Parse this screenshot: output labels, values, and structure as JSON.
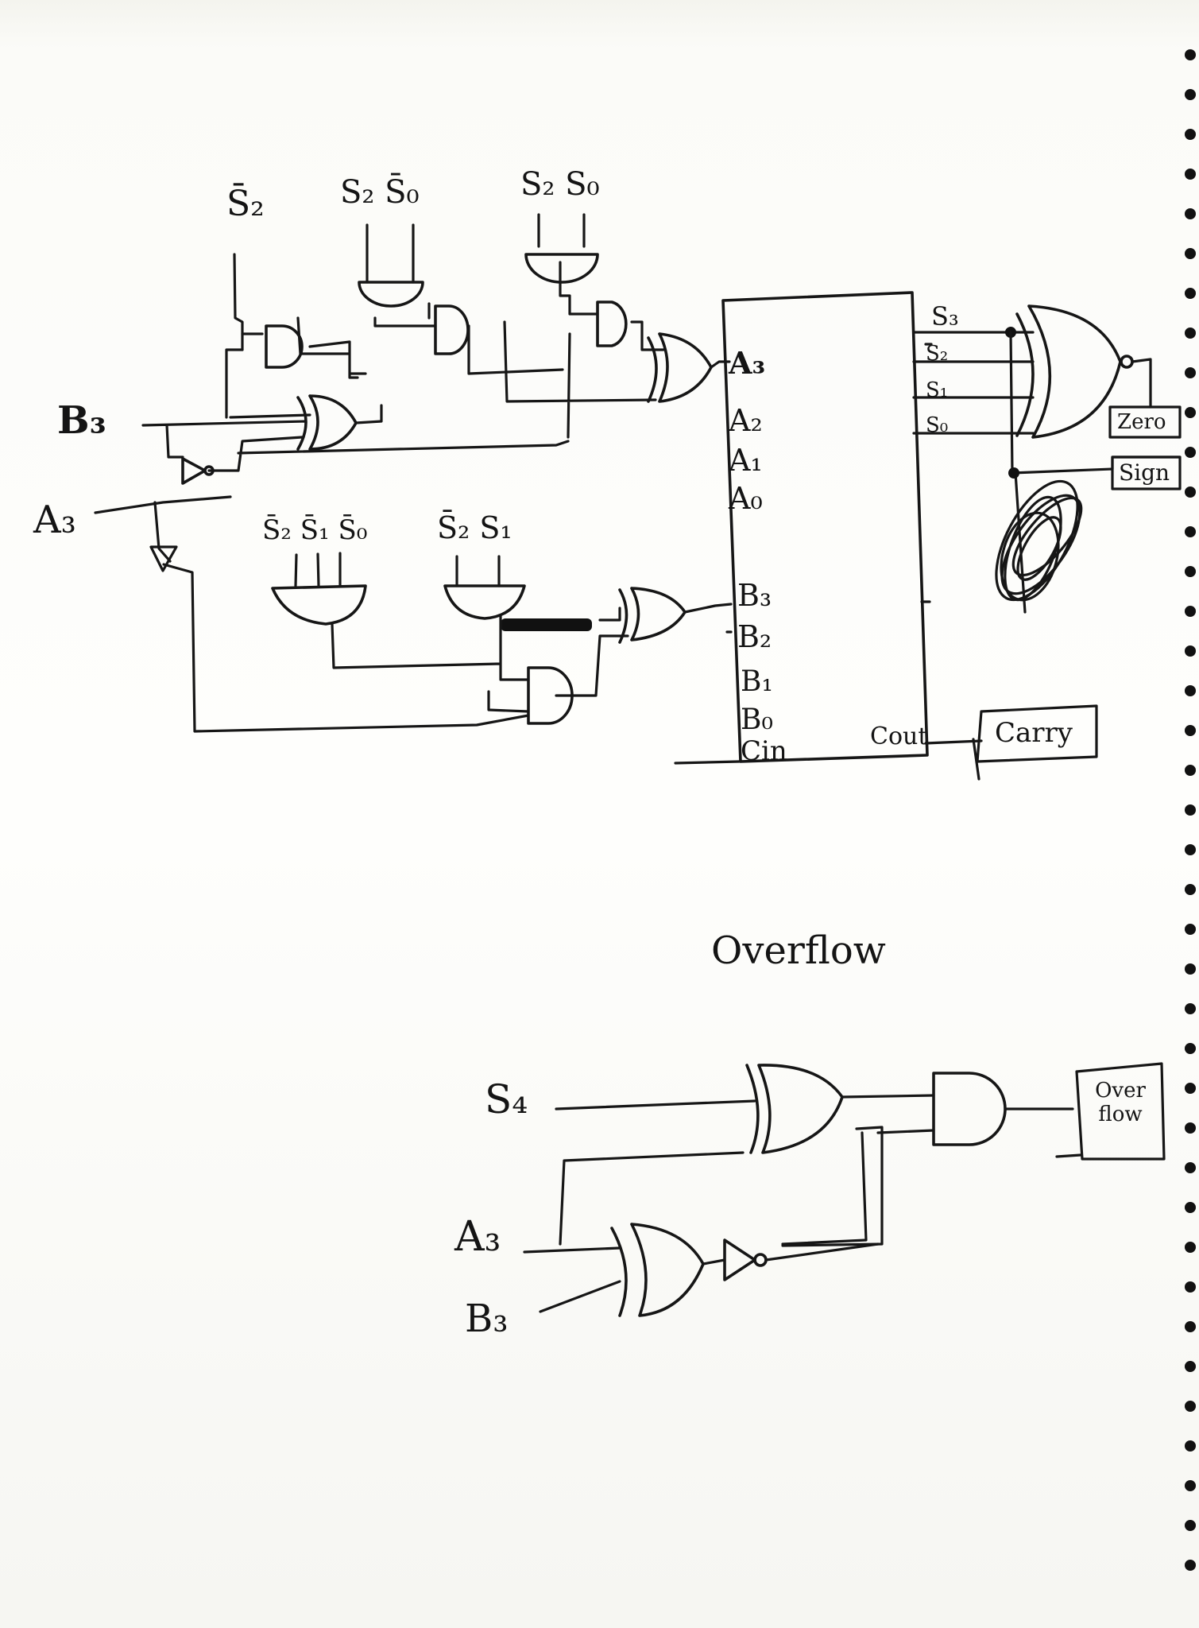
{
  "top_inputs": {
    "not_s2": "S̄₂",
    "s2_not_s0": "S₂ S̄₀",
    "s2_s0": "S₂ S₀",
    "not_s2_s1_s0": "S̄₂ S̄₁ S̄₀",
    "not_s2_s1": "S̄₂ S₁"
  },
  "side_inputs": {
    "b3": "B₃",
    "a3": "A₃"
  },
  "adder": {
    "a_inputs": [
      "A₃",
      "A₂",
      "A₁",
      "A₀"
    ],
    "b_inputs": [
      "B₃",
      "B₂",
      "B₁",
      "B₀"
    ],
    "cin": "Cin",
    "cout": "Cout",
    "sum_outputs": [
      "S₃",
      "S₂",
      "S₁",
      "S₀"
    ]
  },
  "flags": {
    "zero": "Zero",
    "sign": "Sign",
    "carry": "Carry"
  },
  "overflow": {
    "title": "Overflow",
    "s4": "S₄",
    "a3": "A₃",
    "b3": "B₃",
    "output": "Over flow"
  }
}
